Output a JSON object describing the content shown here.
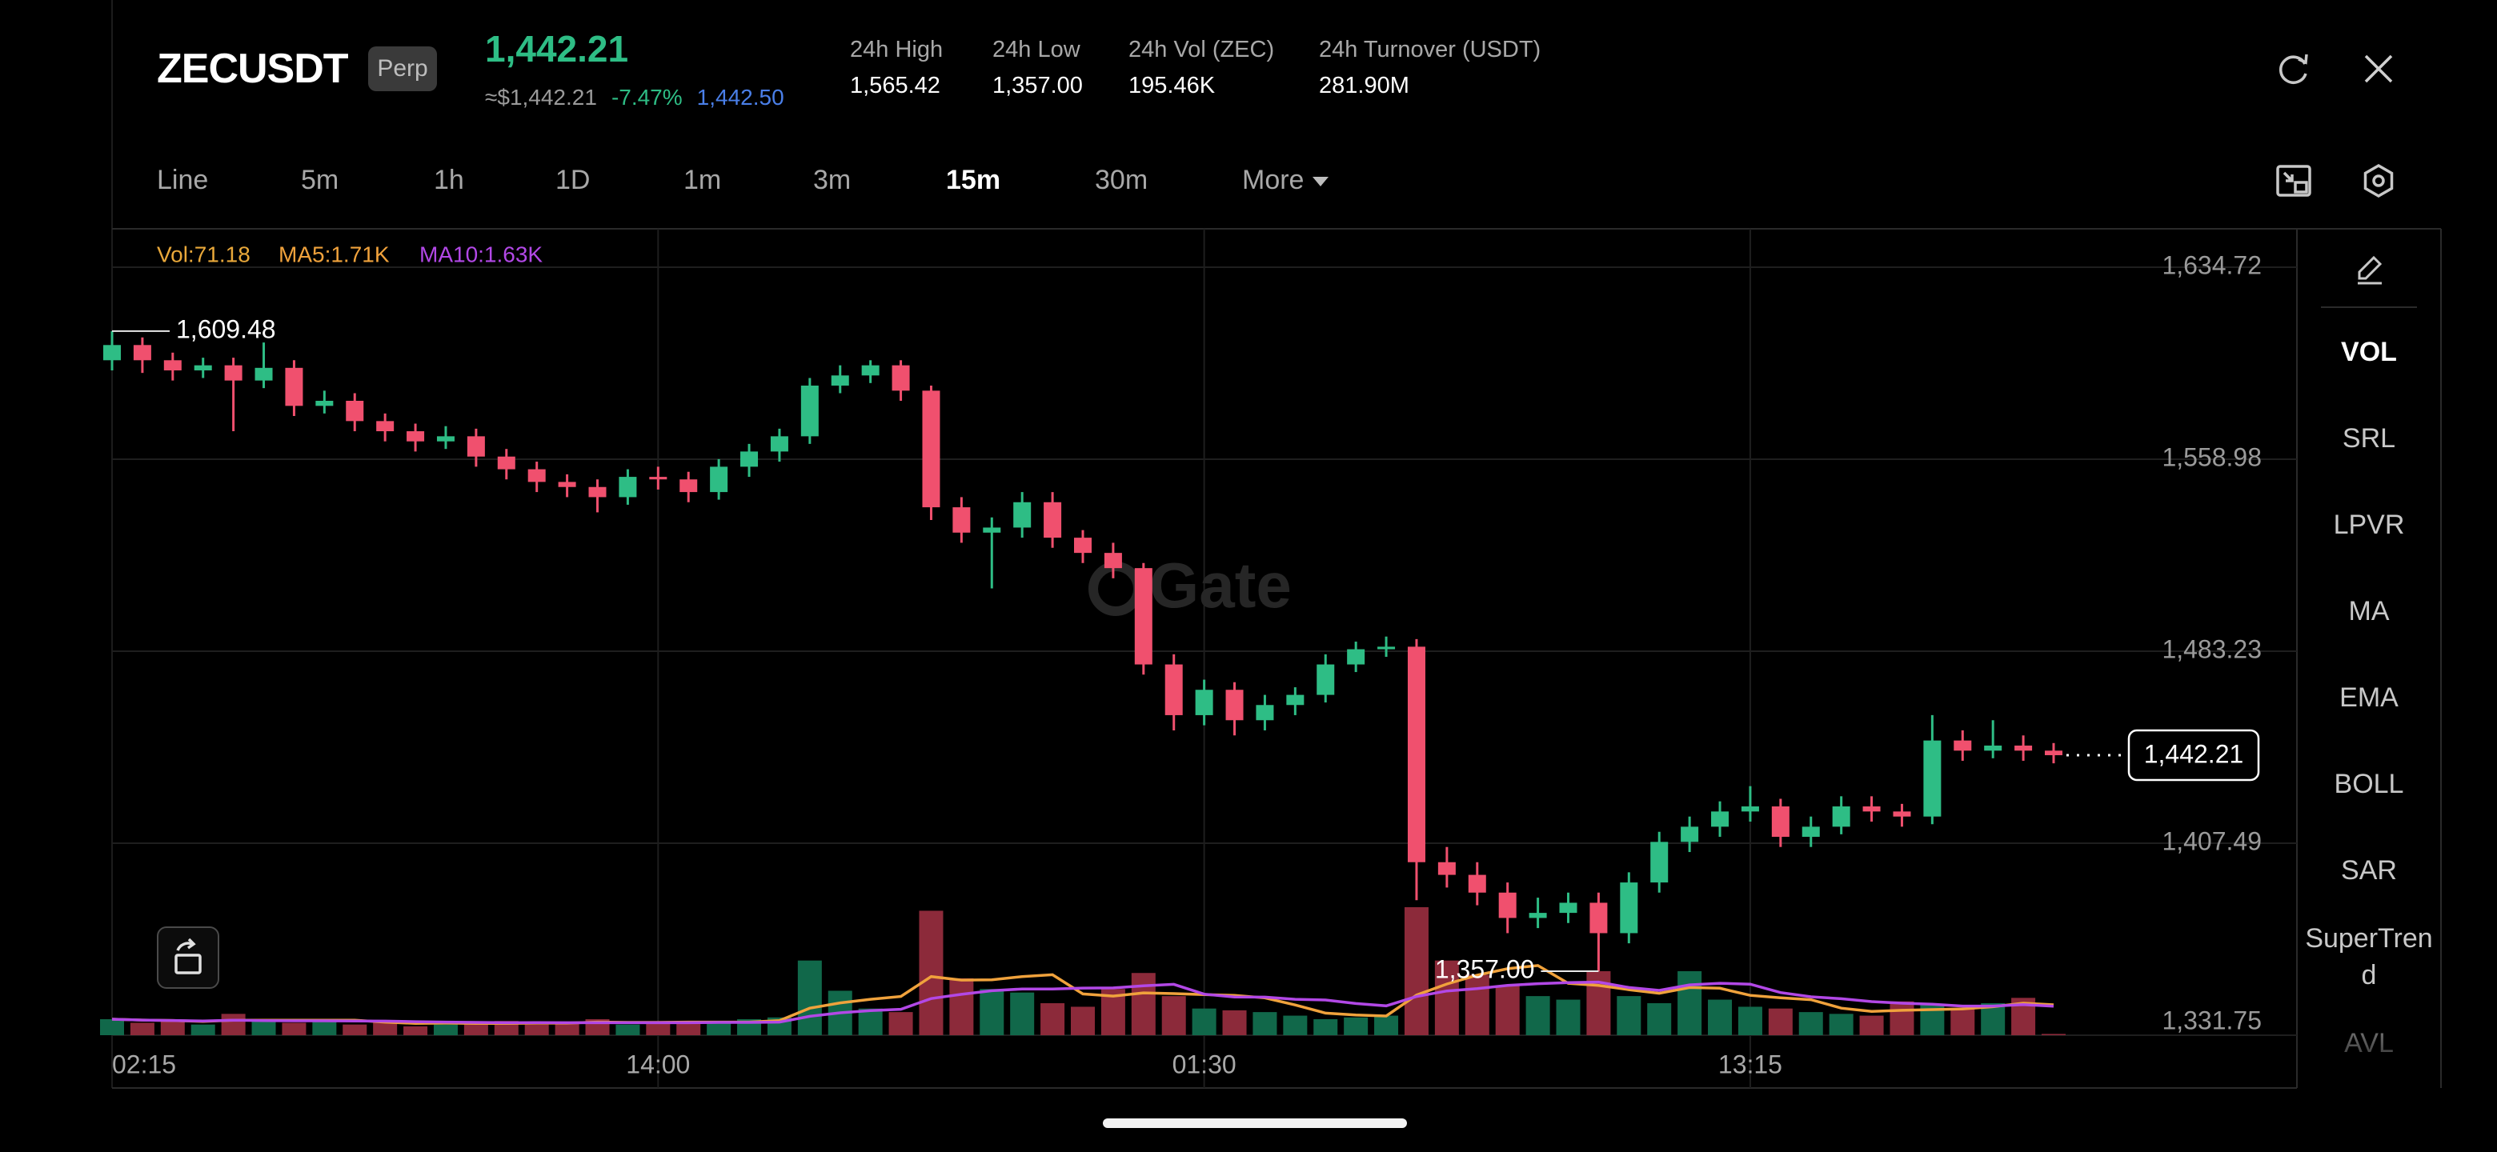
{
  "header": {
    "symbol": "ZECUSDT",
    "badge": "Perp",
    "price": "1,442.21",
    "approx_price": "≈$1,442.21",
    "change": "-7.47%",
    "mark_price": "1,442.50",
    "stats": [
      {
        "label": "24h High",
        "value": "1,565.42"
      },
      {
        "label": "24h Low",
        "value": "1,357.00"
      },
      {
        "label": "24h Vol (ZEC)",
        "value": "195.46K"
      },
      {
        "label": "24h Turnover (USDT)",
        "value": "281.90M"
      }
    ]
  },
  "toolbar": {
    "intervals": [
      "Line",
      "5m",
      "1h",
      "1D",
      "1m",
      "3m",
      "15m",
      "30m"
    ],
    "active": "15m",
    "more": "More"
  },
  "sidebar": {
    "indicators": [
      "VOL",
      "SRL",
      "LPVR",
      "MA",
      "EMA",
      "BOLL",
      "SAR",
      "SuperTrend",
      "AVL"
    ],
    "active": "VOL"
  },
  "watermark": "Gate",
  "chart_data": {
    "type": "candlestick",
    "categories": [
      "02:15",
      null,
      null,
      null,
      null,
      null,
      null,
      null,
      null,
      null,
      null,
      null,
      null,
      null,
      null,
      null,
      null,
      null,
      "14:00",
      null,
      null,
      null,
      null,
      null,
      null,
      null,
      null,
      null,
      null,
      null,
      null,
      null,
      null,
      null,
      null,
      null,
      "01:30",
      null,
      null,
      null,
      null,
      null,
      null,
      null,
      null,
      null,
      null,
      null,
      null,
      null,
      null,
      null,
      null,
      null,
      "13:15",
      null,
      null,
      null,
      null,
      null,
      null,
      null,
      null,
      null,
      null
    ],
    "open": [
      1598,
      1604,
      1598,
      1594,
      1596,
      1590,
      1595,
      1580,
      1582,
      1574,
      1570,
      1566,
      1568,
      1560,
      1555,
      1550,
      1548,
      1544,
      1552,
      1551,
      1546,
      1556,
      1562,
      1568,
      1588,
      1592,
      1596,
      1586,
      1540,
      1530,
      1532,
      1542,
      1528,
      1522,
      1516,
      1478,
      1458,
      1468,
      1456,
      1462,
      1466,
      1478,
      1484,
      1485,
      1400,
      1395,
      1388,
      1378,
      1380,
      1384,
      1372,
      1392,
      1408,
      1414,
      1420,
      1422,
      1410,
      1414,
      1422,
      1420,
      1418,
      1448,
      1444,
      1446,
      1444
    ],
    "high": [
      1609.48,
      1607,
      1601,
      1599,
      1599,
      1605,
      1598,
      1586,
      1585,
      1577,
      1573,
      1572,
      1571,
      1563,
      1558,
      1553,
      1551,
      1555,
      1556,
      1554,
      1559,
      1565,
      1571,
      1591,
      1596,
      1598,
      1598,
      1588,
      1544,
      1536,
      1546,
      1546,
      1531,
      1526,
      1518,
      1482,
      1472,
      1471,
      1466,
      1469,
      1482,
      1487,
      1489,
      1488,
      1406,
      1400,
      1392,
      1386,
      1388,
      1388,
      1396,
      1412,
      1418,
      1424,
      1430,
      1425,
      1418,
      1426,
      1426,
      1423,
      1458,
      1452,
      1456,
      1450,
      1447
    ],
    "low": [
      1594,
      1593,
      1590,
      1591,
      1570,
      1587,
      1576,
      1577,
      1570,
      1566,
      1562,
      1563,
      1556,
      1551,
      1546,
      1544,
      1538,
      1541,
      1547,
      1542,
      1543,
      1552,
      1558,
      1565,
      1585,
      1589,
      1582,
      1535,
      1526,
      1508,
      1528,
      1524,
      1518,
      1512,
      1474,
      1452,
      1454,
      1450,
      1452,
      1458,
      1463,
      1475,
      1481,
      1385,
      1390,
      1383,
      1372,
      1374,
      1376,
      1357,
      1368,
      1388,
      1404,
      1410,
      1416,
      1406,
      1406,
      1411,
      1416,
      1414,
      1415,
      1440,
      1441,
      1440,
      1439
    ],
    "close": [
      1604,
      1598,
      1594,
      1596,
      1590,
      1595,
      1580,
      1582,
      1574,
      1570,
      1566,
      1568,
      1560,
      1555,
      1550,
      1548,
      1544,
      1552,
      1551,
      1546,
      1556,
      1562,
      1568,
      1588,
      1592,
      1596,
      1586,
      1540,
      1530,
      1532,
      1542,
      1528,
      1522,
      1516,
      1478,
      1458,
      1468,
      1456,
      1462,
      1466,
      1478,
      1484,
      1485,
      1400,
      1395,
      1388,
      1378,
      1380,
      1384,
      1372,
      1392,
      1408,
      1414,
      1420,
      1422,
      1410,
      1414,
      1422,
      1420,
      1418,
      1448,
      1444,
      1446,
      1444,
      1442.21
    ],
    "up_color": "#2ebd85",
    "down_color": "#f0506e",
    "ylim": [
      1331.75,
      1649.85
    ],
    "yticks": [
      {
        "value": 1634.72,
        "label": "1,634.72"
      },
      {
        "value": 1558.98,
        "label": "1,558.98"
      },
      {
        "value": 1483.23,
        "label": "1,483.23"
      },
      {
        "value": 1407.49,
        "label": "1,407.49"
      },
      {
        "value": 1331.75,
        "label": "1,331.75"
      }
    ],
    "grid": true,
    "volume": {
      "values": [
        900,
        700,
        800,
        600,
        1200,
        900,
        700,
        800,
        600,
        700,
        500,
        600,
        700,
        800,
        600,
        700,
        900,
        600,
        700,
        800,
        700,
        900,
        1000,
        4200,
        2500,
        1500,
        1300,
        7000,
        3200,
        2600,
        2400,
        1800,
        1600,
        2600,
        3500,
        2200,
        1500,
        1400,
        1300,
        1100,
        900,
        1000,
        1100,
        7200,
        4200,
        3400,
        2800,
        2200,
        2000,
        3600,
        2200,
        1800,
        3600,
        2000,
        1600,
        1500,
        1300,
        1200,
        1100,
        1900,
        1700,
        1500,
        1800,
        2100,
        71.18
      ],
      "up_color": "#11684a",
      "down_color": "#8c2a3a"
    },
    "y2lim": [
      0,
      9000
    ],
    "series": [
      {
        "name": "MA5:1.71K",
        "color": "#f0a23c",
        "axis": "y2",
        "values": [
          900,
          850,
          830,
          780,
          840,
          840,
          840,
          840,
          840,
          740,
          660,
          680,
          660,
          660,
          680,
          680,
          740,
          720,
          720,
          740,
          740,
          740,
          820,
          1520,
          1820,
          2020,
          2180,
          3300,
          3100,
          3120,
          3300,
          3400,
          2320,
          2200,
          2380,
          2340,
          2280,
          2240,
          2100,
          1700,
          1240,
          1140,
          1080,
          2260,
          2880,
          3380,
          3740,
          3920,
          2920,
          2800,
          2560,
          2360,
          2680,
          2640,
          2240,
          2100,
          2000,
          1520,
          1340,
          1400,
          1440,
          1480,
          1600,
          1800,
          1710
        ]
      },
      {
        "name": "MA10:1.63K",
        "color": "#b248e6",
        "axis": "y2",
        "values": [
          900,
          850,
          830,
          800,
          840,
          820,
          810,
          810,
          800,
          790,
          760,
          740,
          720,
          700,
          710,
          700,
          700,
          700,
          700,
          700,
          720,
          720,
          740,
          1060,
          1260,
          1380,
          1460,
          2060,
          2300,
          2500,
          2600,
          2600,
          2650,
          2660,
          2780,
          2860,
          2310,
          2150,
          2140,
          2020,
          1980,
          1780,
          1650,
          2180,
          2490,
          2620,
          2800,
          2900,
          2960,
          2990,
          2680,
          2520,
          2830,
          2920,
          2870,
          2400,
          2160,
          2050,
          1890,
          1800,
          1740,
          1640,
          1640,
          1720,
          1630
        ]
      }
    ],
    "volume_label": "Vol:71.18",
    "volume_label_color": "#e9a83a",
    "max_label": "1,609.48",
    "min_label": "1,357.00",
    "last_label": "1,442.21"
  }
}
